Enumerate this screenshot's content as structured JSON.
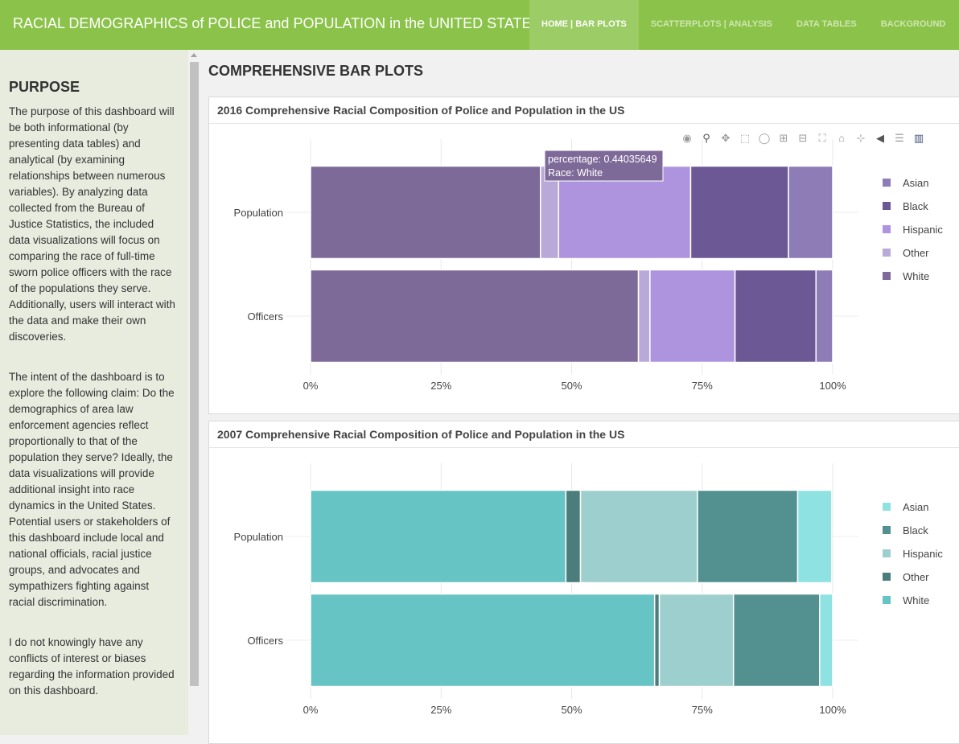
{
  "header": {
    "title": "RACIAL DEMOGRAPHICS of POLICE and POPULATION in the UNITED STATES",
    "tabs": [
      {
        "label": "HOME | BAR PLOTS",
        "active": true
      },
      {
        "label": "SCATTERPLOTS | ANALYSIS",
        "active": false
      },
      {
        "label": "DATA TABLES",
        "active": false
      },
      {
        "label": "BACKGROUND",
        "active": false
      }
    ]
  },
  "sidebar": {
    "heading": "PURPOSE",
    "paragraphs": [
      "The purpose of this dashboard will be both informational (by presenting data tables) and analytical (by examining relationships between numerous variables). By analyzing data collected from the Bureau of Justice Statistics, the included data visualizations will focus on comparing the race of full-time sworn police officers with the race of the populations they serve. Additionally, users will interact with the data and make their own discoveries.",
      "The intent of the dashboard is to explore the following claim: Do the demographics of area law enforcement agencies reflect proportionally to that of the population they serve? Ideally, the data visualizations will provide additional insight into race dynamics in the United States. Potential users or stakeholders of this dashboard include local and national officials, racial justice groups, and advocates and sympathizers fighting against racial discrimination.",
      "I do not knowingly have any conflicts of interest or biases regarding the information provided on this dashboard."
    ]
  },
  "main": {
    "title": "COMPREHENSIVE BAR PLOTS"
  },
  "modebar_icons": [
    "camera-icon",
    "zoom-icon",
    "pan-icon",
    "box-select-icon",
    "lasso-icon",
    "zoom-in-icon",
    "zoom-out-icon",
    "autoscale-icon",
    "reset-axes-icon",
    "spike-lines-icon",
    "hover-closest-icon",
    "hover-compare-icon",
    "plotly-logo-icon"
  ],
  "chart_data": [
    {
      "type": "bar",
      "orientation": "horizontal",
      "stacked": true,
      "title": "2016 Comprehensive Racial Composition of Police and Population in the US",
      "categories": [
        "Population",
        "Officers"
      ],
      "xlim": [
        0,
        1
      ],
      "xticks": [
        "0%",
        "25%",
        "50%",
        "75%",
        "100%"
      ],
      "stack_order": [
        "White",
        "Other",
        "Hispanic",
        "Black",
        "Asian"
      ],
      "series": [
        {
          "name": "Asian",
          "color": "#8e7cb6",
          "values": [
            0.0846,
            0.032
          ]
        },
        {
          "name": "Black",
          "color": "#6b5894",
          "values": [
            0.1874,
            0.155
          ]
        },
        {
          "name": "Hispanic",
          "color": "#ae93df",
          "values": [
            0.253,
            0.163
          ]
        },
        {
          "name": "Other",
          "color": "#b9a9d9",
          "values": [
            0.0346,
            0.022
          ]
        },
        {
          "name": "White",
          "color": "#7e6a98",
          "values": [
            0.4404,
            0.628
          ]
        }
      ],
      "legend": [
        "Asian",
        "Black",
        "Hispanic",
        "Other",
        "White"
      ],
      "legend_position": "right",
      "tooltip": {
        "line1": "percentage: 0.44035649",
        "line2": "Race: White"
      }
    },
    {
      "type": "bar",
      "orientation": "horizontal",
      "stacked": true,
      "title": "2007 Comprehensive Racial Composition of Police and Population in the US",
      "categories": [
        "Population",
        "Officers"
      ],
      "xlim": [
        0,
        1
      ],
      "xticks": [
        "0%",
        "25%",
        "50%",
        "75%",
        "100%"
      ],
      "stack_order": [
        "White",
        "Other",
        "Hispanic",
        "Black",
        "Asian"
      ],
      "series": [
        {
          "name": "Asian",
          "color": "#8ee2e2",
          "values": [
            0.065,
            0.025
          ]
        },
        {
          "name": "Black",
          "color": "#52918f",
          "values": [
            0.192,
            0.165
          ]
        },
        {
          "name": "Hispanic",
          "color": "#9ecfcf",
          "values": [
            0.224,
            0.142
          ]
        },
        {
          "name": "Other",
          "color": "#4a7d7b",
          "values": [
            0.028,
            0.009
          ]
        },
        {
          "name": "White",
          "color": "#66c4c4",
          "values": [
            0.489,
            0.659
          ]
        }
      ],
      "legend": [
        "Asian",
        "Black",
        "Hispanic",
        "Other",
        "White"
      ],
      "legend_position": "right"
    }
  ]
}
